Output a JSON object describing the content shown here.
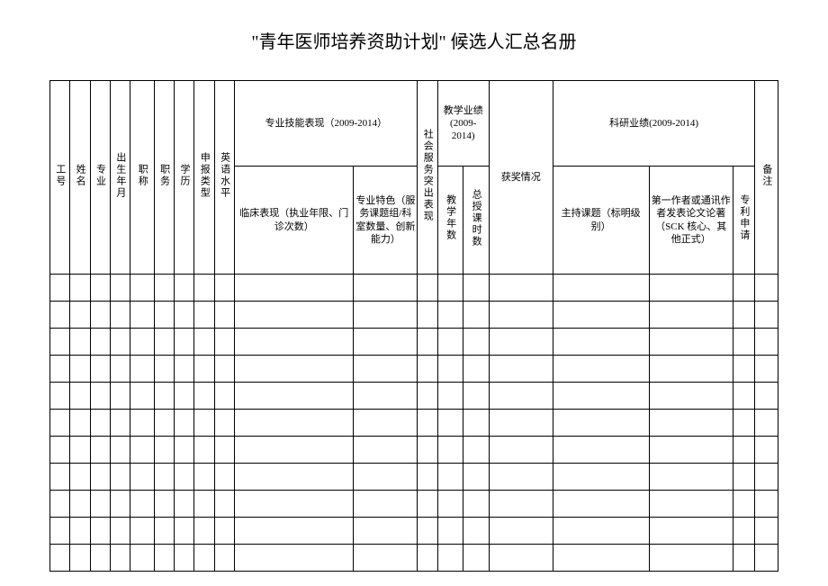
{
  "title": "\"青年医师培养资助计划\" 候选人汇总名册",
  "headers": {
    "col1": "工号",
    "col2": "姓名",
    "col3": "专业",
    "col4": "出生年月",
    "col5": "职称",
    "col6": "职务",
    "col7": "学历",
    "col8": "申报类型",
    "col9": "英语水平",
    "group1": "专业技能表现（2009-2014）",
    "group1_sub1": "临床表现（执业年限、门诊次数）",
    "group1_sub2": "专业特色（服务课题组/科室数量、创新能力）",
    "col_social": "社会服务突出表现",
    "group2": "教学业绩(2009-2014)",
    "group2_sub1": "教学年数",
    "group2_sub2": "总授课时数",
    "col_award": "获奖情况",
    "group3": "科研业绩(2009-2014)",
    "group3_sub1": "主持课题（标明级别）",
    "group3_sub2": "第一作者或通讯作者发表论文论著（SCK 核心、其他正式）",
    "group3_sub3": "专利申请",
    "col_note": "备注"
  },
  "styling": {
    "border_color": "#000000",
    "background_color": "#ffffff",
    "title_fontsize": 20,
    "cell_fontsize": 11,
    "data_row_count": 11
  },
  "column_widths": {
    "narrow": 22,
    "wide_narrow": 26,
    "clinical": 130,
    "specialty": 70,
    "social": 22,
    "teach_year": 28,
    "teach_hour": 28,
    "award": 70,
    "research_topic": 105,
    "research_paper": 92,
    "patent": 24,
    "note": 25
  }
}
